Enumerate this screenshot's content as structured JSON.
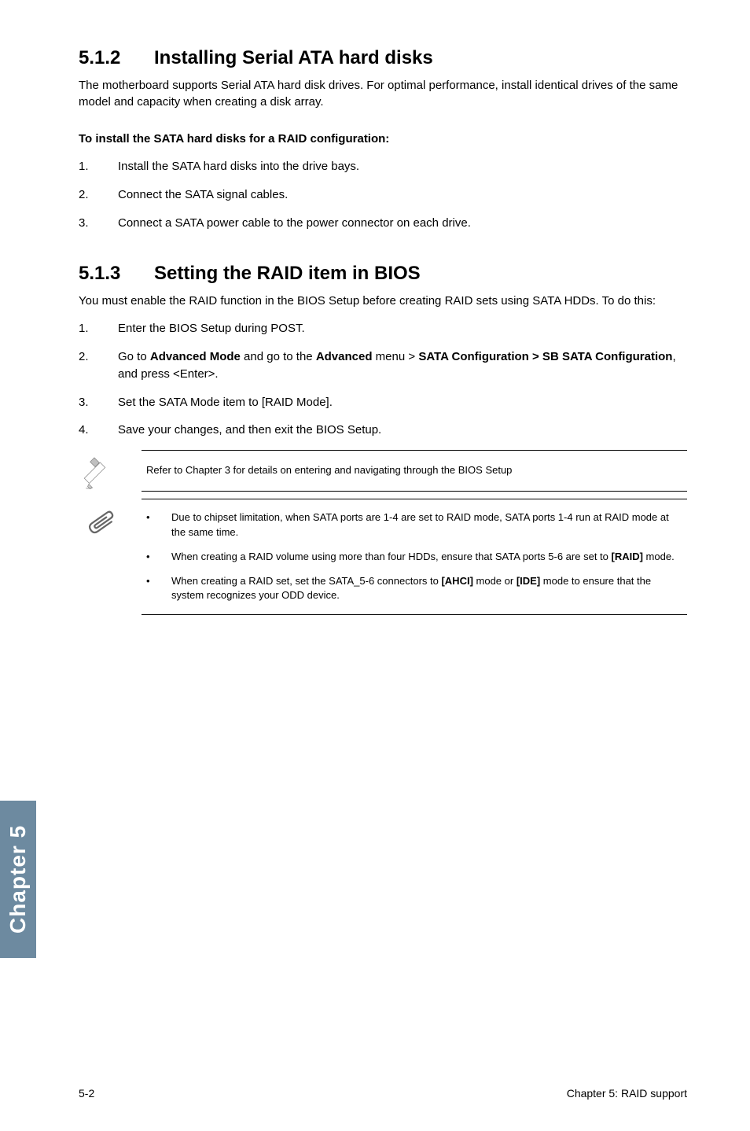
{
  "section512": {
    "number": "5.1.2",
    "title": "Installing Serial ATA hard disks",
    "intro": "The motherboard supports Serial ATA hard disk drives. For optimal performance, install identical drives of the same model and capacity when creating a disk array.",
    "subhead": "To install the SATA hard disks for a RAID configuration:",
    "steps": [
      "Install the SATA hard disks into the drive bays.",
      "Connect the SATA signal cables.",
      "Connect a SATA power cable to the power connector on each drive."
    ]
  },
  "section513": {
    "number": "5.1.3",
    "title": "Setting the RAID item in BIOS",
    "intro": "You must enable the RAID function in the BIOS Setup before creating RAID sets using SATA HDDs. To do this:",
    "steps_html": [
      "Enter the BIOS Setup during POST.",
      "Go to <b>Advanced Mode</b> and go to the <b>Advanced</b> menu > <b>SATA Configuration > SB SATA Configuration</b>, and press &lt;Enter&gt;.",
      "Set the SATA Mode item to [RAID Mode].",
      "Save your changes, and then exit the BIOS Setup."
    ]
  },
  "note1": {
    "text": "Refer to Chapter 3 for details on entering and navigating through the BIOS Setup"
  },
  "note2": {
    "bullets_html": [
      "Due to chipset limitation, when SATA ports are 1-4 are set to RAID mode, SATA ports 1-4  run at RAID mode at the same time.",
      "When creating a RAID volume using more than four HDDs, ensure that SATA ports 5-6 are set to <b>[RAID]</b> mode.",
      "When creating a RAID set, set the SATA_5-6 connectors to <b>[AHCI]</b> mode or <b>[IDE]</b> mode to ensure that the system recognizes your ODD device."
    ]
  },
  "sidebar": {
    "label": "Chapter 5",
    "bg_color": "#6d8aa0",
    "text_color": "#ffffff"
  },
  "footer": {
    "left": "5-2",
    "right": "Chapter 5: RAID support"
  }
}
